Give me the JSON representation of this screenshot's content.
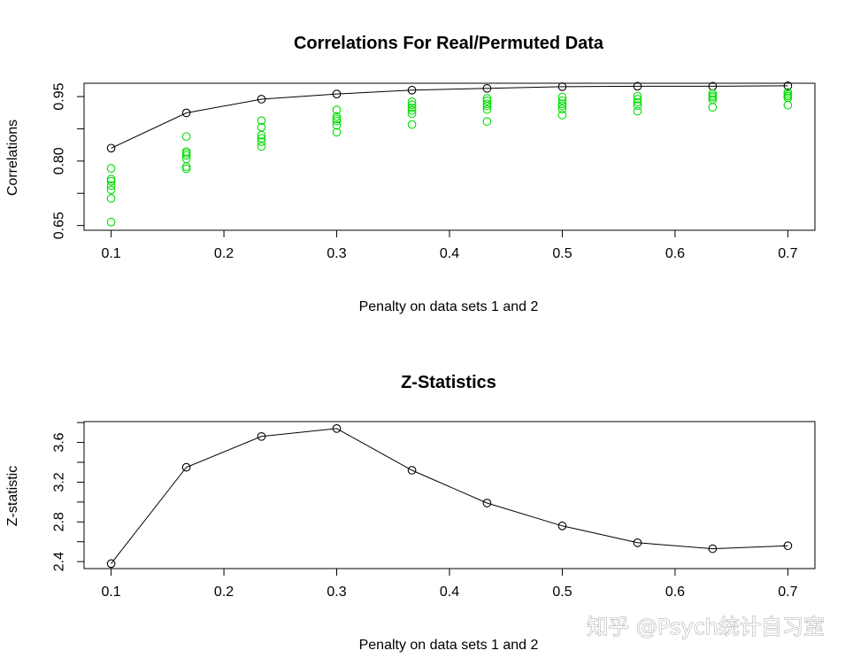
{
  "chart_data": [
    {
      "type": "scatter",
      "title": "Correlations For Real/Permuted Data",
      "xlabel": "Penalty on data sets 1 and 2",
      "ylabel": "Correlations",
      "x_ticks": [
        "0.1",
        "0.2",
        "0.3",
        "0.4",
        "0.5",
        "0.6",
        "0.7"
      ],
      "y_ticks": [
        "0.65",
        "0.80",
        "0.95"
      ],
      "xlim": [
        0.076,
        0.724
      ],
      "ylim": [
        0.639,
        0.981
      ],
      "grid": false,
      "colors": {
        "real": "#000000",
        "permuted": "#00dd00"
      },
      "x": [
        0.1,
        0.1667,
        0.2333,
        0.3,
        0.3667,
        0.4333,
        0.5,
        0.5667,
        0.6333,
        0.7
      ],
      "series": [
        {
          "kind": "line+points",
          "values": [
            0.83,
            0.912,
            0.944,
            0.956,
            0.965,
            0.969,
            0.973,
            0.974,
            0.974,
            0.975
          ]
        },
        {
          "kind": "points",
          "values": [
            [
              0.713,
              0.733,
              0.743,
              0.753,
              0.758,
              0.783,
              0.658
            ],
            [
              0.782,
              0.787,
              0.805,
              0.813,
              0.818,
              0.822,
              0.857
            ],
            [
              0.834,
              0.845,
              0.853,
              0.86,
              0.879,
              0.894
            ],
            [
              0.867,
              0.883,
              0.893,
              0.898,
              0.904,
              0.919
            ],
            [
              0.885,
              0.91,
              0.918,
              0.924,
              0.931,
              0.938
            ],
            [
              0.892,
              0.92,
              0.928,
              0.933,
              0.94,
              0.946
            ],
            [
              0.907,
              0.921,
              0.928,
              0.933,
              0.941,
              0.949
            ],
            [
              0.916,
              0.929,
              0.937,
              0.944,
              0.951
            ],
            [
              0.925,
              0.943,
              0.948,
              0.952,
              0.957
            ],
            [
              0.93,
              0.947,
              0.951,
              0.955,
              0.96
            ]
          ]
        }
      ]
    },
    {
      "type": "line",
      "title": "Z-Statistics",
      "xlabel": "Penalty on data sets 1 and 2",
      "ylabel": "Z-statistic",
      "x_ticks": [
        "0.1",
        "0.2",
        "0.3",
        "0.4",
        "0.5",
        "0.6",
        "0.7"
      ],
      "y_ticks": [
        "2.4",
        "2.8",
        "3.2",
        "3.6"
      ],
      "xlim": [
        0.076,
        0.724
      ],
      "ylim": [
        2.33,
        3.81
      ],
      "grid": false,
      "x": [
        0.1,
        0.1667,
        0.2333,
        0.3,
        0.3667,
        0.4333,
        0.5,
        0.5667,
        0.6333,
        0.7
      ],
      "series": [
        {
          "kind": "line+points",
          "values": [
            2.38,
            3.35,
            3.66,
            3.74,
            3.32,
            2.99,
            2.76,
            2.59,
            2.53,
            2.56
          ]
        }
      ]
    }
  ],
  "watermark": "知乎 @Psych统计自习室"
}
